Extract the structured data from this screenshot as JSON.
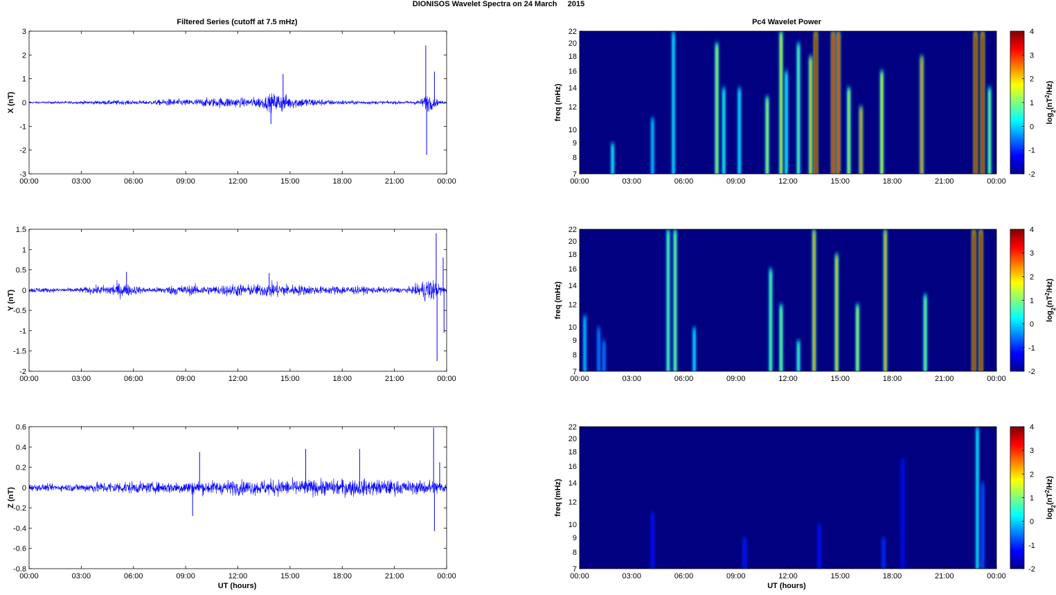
{
  "figure": {
    "title": "DIONISOS Wavelet Spectra on 24 March     2015"
  },
  "chart_data": [
    {
      "panel": "filtered-x",
      "type": "line",
      "title": "Filtered Series (cutoff at 7.5 mHz)",
      "ylabel": "X (nT)",
      "xlabel": "",
      "x_tick_labels": [
        "00:00",
        "03:00",
        "06:00",
        "09:00",
        "12:00",
        "15:00",
        "18:00",
        "21:00",
        "00:00"
      ],
      "y_ticks": [
        3,
        2,
        1,
        0,
        -1,
        -2,
        -3
      ],
      "ylim": [
        -3,
        3
      ],
      "color": "#0000ff",
      "x_hours": [
        0,
        0.5,
        1,
        1.5,
        2,
        2.5,
        3,
        3.5,
        4,
        4.5,
        5,
        5.5,
        6,
        6.5,
        7,
        7.5,
        8,
        8.5,
        9,
        9.5,
        10,
        10.5,
        11,
        11.5,
        12,
        12.5,
        13,
        13.5,
        14,
        14.2,
        14.5,
        14.8,
        15,
        15.5,
        16,
        16.5,
        17,
        17.5,
        18,
        18.5,
        19,
        19.5,
        20,
        20.5,
        21,
        21.5,
        22,
        22.5,
        22.8,
        23,
        23.2,
        23.4,
        23.6,
        24
      ],
      "envelope_nT": [
        0.06,
        0.06,
        0.07,
        0.07,
        0.08,
        0.08,
        0.1,
        0.12,
        0.12,
        0.14,
        0.15,
        0.14,
        0.14,
        0.12,
        0.14,
        0.18,
        0.24,
        0.22,
        0.2,
        0.24,
        0.28,
        0.3,
        0.32,
        0.35,
        0.3,
        0.28,
        0.35,
        0.4,
        0.6,
        0.55,
        0.7,
        0.5,
        0.4,
        0.35,
        0.3,
        0.25,
        0.2,
        0.15,
        0.15,
        0.12,
        0.12,
        0.12,
        0.1,
        0.1,
        0.1,
        0.1,
        0.12,
        0.2,
        0.5,
        0.6,
        0.4,
        0.25,
        0.12,
        0.08
      ],
      "spikes": [
        {
          "x": 22.8,
          "y": 2.4
        },
        {
          "x": 22.85,
          "y": -2.2
        },
        {
          "x": 23.3,
          "y": 1.3
        },
        {
          "x": 14.6,
          "y": 1.2
        },
        {
          "x": 13.9,
          "y": -0.9
        }
      ]
    },
    {
      "panel": "filtered-y",
      "type": "line",
      "title": "",
      "ylabel": "Y (nT)",
      "xlabel": "",
      "x_tick_labels": [
        "00:00",
        "03:00",
        "06:00",
        "09:00",
        "12:00",
        "15:00",
        "18:00",
        "21:00",
        "00:00"
      ],
      "y_ticks": [
        1.5,
        1,
        0.5,
        0,
        -0.5,
        -1,
        -1.5,
        -2
      ],
      "ylim": [
        -2,
        1.5
      ],
      "color": "#0000ff",
      "x_hours": [
        0,
        0.5,
        1,
        1.5,
        2,
        2.5,
        3,
        3.5,
        4,
        4.5,
        5,
        5.5,
        6,
        6.5,
        7,
        7.5,
        8,
        8.5,
        9,
        9.5,
        10,
        10.5,
        11,
        11.5,
        12,
        12.5,
        13,
        13.5,
        14,
        14.5,
        15,
        15.5,
        16,
        16.5,
        17,
        17.5,
        18,
        18.5,
        19,
        19.5,
        20,
        20.5,
        21,
        21.5,
        22,
        22.5,
        23,
        23.5,
        24
      ],
      "envelope_nT": [
        0.1,
        0.1,
        0.09,
        0.08,
        0.08,
        0.08,
        0.1,
        0.14,
        0.16,
        0.2,
        0.28,
        0.25,
        0.18,
        0.12,
        0.1,
        0.12,
        0.16,
        0.2,
        0.18,
        0.2,
        0.18,
        0.16,
        0.2,
        0.22,
        0.25,
        0.2,
        0.22,
        0.24,
        0.3,
        0.28,
        0.22,
        0.2,
        0.18,
        0.16,
        0.14,
        0.16,
        0.18,
        0.16,
        0.14,
        0.13,
        0.12,
        0.11,
        0.1,
        0.1,
        0.12,
        0.3,
        0.5,
        0.25,
        0.1
      ],
      "spikes": [
        {
          "x": 23.4,
          "y": 1.4
        },
        {
          "x": 23.45,
          "y": -1.75
        },
        {
          "x": 23.8,
          "y": 0.8
        },
        {
          "x": 23.85,
          "y": -1.05
        },
        {
          "x": 13.8,
          "y": 0.42
        },
        {
          "x": 5.6,
          "y": 0.45
        }
      ]
    },
    {
      "panel": "filtered-z",
      "type": "line",
      "title": "",
      "ylabel": "Z (nT)",
      "xlabel": "UT (hours)",
      "x_tick_labels": [
        "00:00",
        "03:00",
        "06:00",
        "09:00",
        "12:00",
        "15:00",
        "18:00",
        "21:00",
        "00:00"
      ],
      "y_ticks": [
        0.6,
        0.4,
        0.2,
        0,
        -0.2,
        -0.4,
        -0.6,
        -0.8
      ],
      "ylim": [
        -0.8,
        0.6
      ],
      "color": "#0000ff",
      "x_hours": [
        0,
        0.5,
        1,
        1.5,
        2,
        2.5,
        3,
        3.5,
        4,
        4.5,
        5,
        5.5,
        6,
        6.5,
        7,
        7.5,
        8,
        8.5,
        9,
        9.5,
        10,
        10.5,
        11,
        11.5,
        12,
        12.5,
        13,
        13.5,
        14,
        14.5,
        15,
        15.5,
        16,
        16.5,
        17,
        17.5,
        18,
        18.5,
        19,
        19.5,
        20,
        20.5,
        21,
        21.5,
        22,
        22.5,
        23,
        23.5,
        24
      ],
      "envelope_nT": [
        0.05,
        0.05,
        0.05,
        0.05,
        0.05,
        0.06,
        0.06,
        0.08,
        0.08,
        0.09,
        0.09,
        0.09,
        0.09,
        0.08,
        0.08,
        0.08,
        0.09,
        0.09,
        0.1,
        0.1,
        0.1,
        0.1,
        0.1,
        0.11,
        0.11,
        0.11,
        0.11,
        0.12,
        0.12,
        0.12,
        0.12,
        0.12,
        0.12,
        0.12,
        0.12,
        0.12,
        0.13,
        0.13,
        0.13,
        0.12,
        0.12,
        0.12,
        0.11,
        0.1,
        0.1,
        0.1,
        0.12,
        0.1,
        0.08
      ],
      "spikes": [
        {
          "x": 9.8,
          "y": 0.35
        },
        {
          "x": 9.4,
          "y": -0.28
        },
        {
          "x": 19,
          "y": 0.38
        },
        {
          "x": 23.25,
          "y": 0.59
        },
        {
          "x": 23.3,
          "y": -0.43
        },
        {
          "x": 15.9,
          "y": 0.38
        },
        {
          "x": 23.6,
          "y": 0.25
        }
      ]
    },
    {
      "panel": "wavelet-x",
      "type": "heatmap",
      "title": "Pc4 Wavelet Power",
      "ylabel": "freq (mHz)",
      "xlabel": "",
      "x_tick_labels": [
        "00:00",
        "03:00",
        "06:00",
        "09:00",
        "12:00",
        "15:00",
        "18:00",
        "21:00",
        "00:00"
      ],
      "y_ticks": [
        22,
        20,
        18,
        16,
        14,
        12,
        10,
        9,
        8,
        7
      ],
      "y_scale": "log",
      "ylim": [
        7,
        22
      ],
      "colorbar": {
        "label": "log2(nT2/Hz)",
        "ticks": [
          4,
          3,
          2,
          1,
          0,
          -1,
          -2
        ],
        "range": [
          -2,
          4
        ],
        "colormap": "jet"
      },
      "background_level": -2,
      "streaks": [
        {
          "t": 1.9,
          "f_top": 9,
          "level": 0.4
        },
        {
          "t": 4.2,
          "f_top": 11,
          "level": 0.0
        },
        {
          "t": 5.4,
          "f_top": 22,
          "level": 0.2
        },
        {
          "t": 7.9,
          "f_top": 20,
          "level": 1.5
        },
        {
          "t": 8.3,
          "f_top": 14,
          "level": 0.5
        },
        {
          "t": 9.2,
          "f_top": 14,
          "level": 0.3
        },
        {
          "t": 10.8,
          "f_top": 13,
          "level": 1.5
        },
        {
          "t": 11.6,
          "f_top": 22,
          "level": 1.8
        },
        {
          "t": 11.9,
          "f_top": 16,
          "level": 0.5
        },
        {
          "t": 12.6,
          "f_top": 20,
          "level": 1.0
        },
        {
          "t": 13.3,
          "f_top": 18,
          "level": 2.0
        },
        {
          "t": 13.6,
          "f_top": 22,
          "level": 4.0
        },
        {
          "t": 14.6,
          "f_top": 22,
          "level": 3.5
        },
        {
          "t": 14.9,
          "f_top": 22,
          "level": 3.2
        },
        {
          "t": 15.5,
          "f_top": 14,
          "level": 1.5
        },
        {
          "t": 16.2,
          "f_top": 12,
          "level": 2.5
        },
        {
          "t": 17.4,
          "f_top": 16,
          "level": 1.8
        },
        {
          "t": 19.7,
          "f_top": 18,
          "level": 2.5
        },
        {
          "t": 22.8,
          "f_top": 22,
          "level": 4.0
        },
        {
          "t": 23.2,
          "f_top": 22,
          "level": 4.0
        },
        {
          "t": 23.6,
          "f_top": 14,
          "level": 1.2
        }
      ]
    },
    {
      "panel": "wavelet-y",
      "type": "heatmap",
      "title": "",
      "ylabel": "freq (mHz)",
      "xlabel": "",
      "x_tick_labels": [
        "00:00",
        "03:00",
        "06:00",
        "09:00",
        "12:00",
        "15:00",
        "18:00",
        "21:00",
        "00:00"
      ],
      "y_ticks": [
        22,
        20,
        18,
        16,
        14,
        12,
        10,
        9,
        8,
        7
      ],
      "y_scale": "log",
      "ylim": [
        7,
        22
      ],
      "colorbar": {
        "label": "log2(nT2/Hz)",
        "ticks": [
          4,
          3,
          2,
          1,
          0,
          -1,
          -2
        ],
        "range": [
          -2,
          4
        ],
        "colormap": "jet"
      },
      "background_level": -2,
      "streaks": [
        {
          "t": 0.3,
          "f_top": 11,
          "level": 0.0
        },
        {
          "t": 1.1,
          "f_top": 10,
          "level": -0.5
        },
        {
          "t": 1.4,
          "f_top": 9,
          "level": -0.5
        },
        {
          "t": 5.1,
          "f_top": 22,
          "level": 1.0
        },
        {
          "t": 5.5,
          "f_top": 22,
          "level": 1.2
        },
        {
          "t": 6.6,
          "f_top": 10,
          "level": 0.2
        },
        {
          "t": 11.0,
          "f_top": 16,
          "level": 1.0
        },
        {
          "t": 11.6,
          "f_top": 12,
          "level": 1.2
        },
        {
          "t": 12.6,
          "f_top": 9,
          "level": 0.8
        },
        {
          "t": 13.5,
          "f_top": 22,
          "level": 2.2
        },
        {
          "t": 14.8,
          "f_top": 18,
          "level": 2.0
        },
        {
          "t": 16.0,
          "f_top": 12,
          "level": 1.5
        },
        {
          "t": 17.6,
          "f_top": 22,
          "level": 2.2
        },
        {
          "t": 19.9,
          "f_top": 13,
          "level": 1.2
        },
        {
          "t": 22.7,
          "f_top": 22,
          "level": 4.0
        },
        {
          "t": 23.1,
          "f_top": 22,
          "level": 4.0
        }
      ]
    },
    {
      "panel": "wavelet-z",
      "type": "heatmap",
      "title": "",
      "ylabel": "freq (mHz)",
      "xlabel": "UT (hours)",
      "x_tick_labels": [
        "00:00",
        "03:00",
        "06:00",
        "09:00",
        "12:00",
        "15:00",
        "18:00",
        "21:00",
        "00:00"
      ],
      "y_ticks": [
        22,
        20,
        18,
        16,
        14,
        12,
        10,
        9,
        8,
        7
      ],
      "y_scale": "log",
      "ylim": [
        7,
        22
      ],
      "colorbar": {
        "label": "log2(nT2/Hz)",
        "ticks": [
          4,
          3,
          2,
          1,
          0,
          -1,
          -2
        ],
        "range": [
          -2,
          4
        ],
        "colormap": "jet"
      },
      "background_level": -2,
      "streaks": [
        {
          "t": 4.2,
          "f_top": 11,
          "level": -1.4
        },
        {
          "t": 9.5,
          "f_top": 9,
          "level": -1.2
        },
        {
          "t": 13.8,
          "f_top": 10,
          "level": -1.4
        },
        {
          "t": 17.5,
          "f_top": 9,
          "level": -1.1
        },
        {
          "t": 18.6,
          "f_top": 17,
          "level": -1.5
        },
        {
          "t": 22.9,
          "f_top": 22,
          "level": 0.3
        },
        {
          "t": 23.2,
          "f_top": 14,
          "level": -0.8
        }
      ]
    }
  ]
}
